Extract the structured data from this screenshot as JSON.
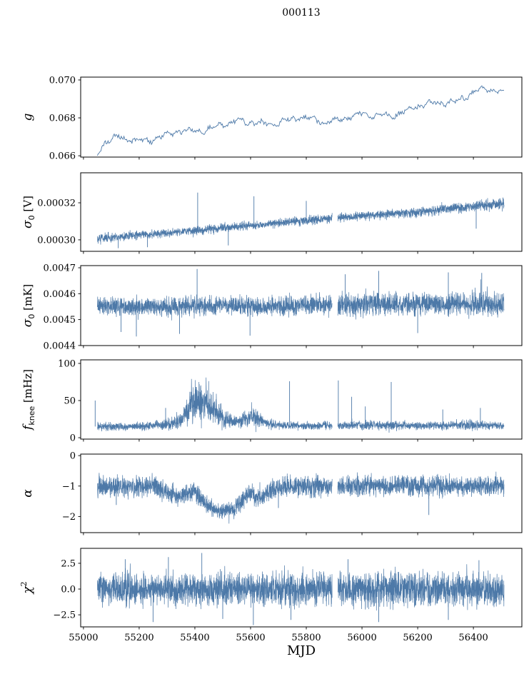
{
  "figure": {
    "title": "000113",
    "xlabel": "MJD",
    "line_color": "#4d79a8",
    "axis_color": "#000000",
    "background": "#ffffff"
  },
  "chart_data": [
    {
      "type": "line",
      "style": "smooth-line",
      "ylabel": {
        "main": "g",
        "sub": "",
        "sup": "",
        "unit": "",
        "italic": true
      },
      "ylim": [
        0.06593,
        0.07015
      ],
      "yticks": [
        {
          "v": 0.066,
          "t": "0.066"
        },
        {
          "v": 0.068,
          "t": "0.068"
        },
        {
          "v": 0.07,
          "t": "0.070"
        }
      ],
      "x_range_data": [
        55050,
        56510
      ],
      "envelope": {
        "x": [
          55050,
          55075,
          55110,
          55180,
          55260,
          55330,
          55400,
          55480,
          55560,
          55640,
          55720,
          55800,
          55880,
          55960,
          56040,
          56120,
          56200,
          56280,
          56360,
          56430,
          56510
        ],
        "center": [
          0.0661,
          0.0666,
          0.06685,
          0.0669,
          0.06695,
          0.0671,
          0.0674,
          0.0676,
          0.0677,
          0.0678,
          0.0678,
          0.0679,
          0.0679,
          0.068,
          0.0681,
          0.0683,
          0.0685,
          0.0688,
          0.0691,
          0.0694,
          0.0694
        ],
        "spread": [
          0.00022,
          0.00025,
          0.00025,
          0.00025,
          0.00025,
          0.00025,
          0.00025,
          0.00025,
          0.00025,
          0.00025,
          0.00025,
          0.00025,
          0.00025,
          0.00025,
          0.00025,
          0.00025,
          0.00025,
          0.00025,
          0.00025,
          0.00022,
          0.0002
        ]
      },
      "spikes": [],
      "gaps": []
    },
    {
      "type": "line",
      "style": "noise-band",
      "ylabel": {
        "main": "σ",
        "sub": "0",
        "sup": "",
        "unit": " [V]",
        "italic": true
      },
      "ylim": [
        0.0002938,
        0.0003362
      ],
      "yticks": [
        {
          "v": 0.0003,
          "t": "0.00030"
        },
        {
          "v": 0.00032,
          "t": "0.00032"
        }
      ],
      "x_range_data": [
        55050,
        56510
      ],
      "envelope": {
        "x": [
          55050,
          55200,
          55400,
          55600,
          55800,
          56000,
          56200,
          56400,
          56510
        ],
        "center": [
          0.000301,
          0.0003025,
          0.000305,
          0.000308,
          0.0003105,
          0.000313,
          0.000315,
          0.000318,
          0.0003195
        ],
        "spread": [
          2.2e-06,
          2.2e-06,
          2.3e-06,
          2.3e-06,
          2.4e-06,
          2.4e-06,
          2.5e-06,
          2.8e-06,
          3e-06
        ]
      },
      "spikes": [
        [
          55410,
          0.0003255
        ],
        [
          55612,
          0.0003235
        ],
        [
          55800,
          0.000321
        ],
        [
          55125,
          0.0002955
        ],
        [
          55230,
          0.000296
        ],
        [
          55520,
          0.000297
        ],
        [
          56410,
          0.000306
        ]
      ],
      "gaps": [
        [
          55893,
          55913
        ]
      ]
    },
    {
      "type": "line",
      "style": "noise-band",
      "ylabel": {
        "main": "σ",
        "sub": "0",
        "sup": "",
        "unit": " [mK]",
        "italic": true
      },
      "ylim": [
        0.0043997,
        0.0047083
      ],
      "yticks": [
        {
          "v": 0.0044,
          "t": "0.0044"
        },
        {
          "v": 0.0045,
          "t": "0.0045"
        },
        {
          "v": 0.0046,
          "t": "0.0046"
        },
        {
          "v": 0.0047,
          "t": "0.0047"
        }
      ],
      "x_range_data": [
        55050,
        56510
      ],
      "envelope": {
        "x": [
          55050,
          55200,
          55400,
          55600,
          55800,
          56000,
          56200,
          56400,
          56510
        ],
        "center": [
          0.004555,
          0.004549,
          0.004553,
          0.004551,
          0.004556,
          0.004558,
          0.00456,
          0.004561,
          0.004559
        ],
        "spread": [
          3.4e-05,
          3.2e-05,
          3.6e-05,
          3.4e-05,
          3.6e-05,
          4.2e-05,
          4e-05,
          4.4e-05,
          4.2e-05
        ]
      },
      "spikes": [
        [
          55408,
          0.004695
        ],
        [
          56060,
          0.004688
        ],
        [
          56310,
          0.004682
        ],
        [
          56430,
          0.00468
        ],
        [
          55940,
          0.004675
        ],
        [
          55190,
          0.004435
        ],
        [
          55345,
          0.004445
        ],
        [
          55598,
          0.004438
        ],
        [
          55135,
          0.004452
        ],
        [
          56200,
          0.004448
        ]
      ],
      "gaps": [
        [
          55893,
          55913
        ]
      ]
    },
    {
      "type": "line",
      "style": "noise-band",
      "ylabel": {
        "main": "f",
        "sub": "knee",
        "sup": "",
        "unit": " [mHz]",
        "italic": true
      },
      "ylim": [
        -1.9,
        104.8
      ],
      "yticks": [
        {
          "v": 0,
          "t": "0"
        },
        {
          "v": 50,
          "t": "50"
        },
        {
          "v": 100,
          "t": "100"
        }
      ],
      "x_range_data": [
        55050,
        56510
      ],
      "envelope": {
        "x": [
          55050,
          55150,
          55250,
          55310,
          55350,
          55380,
          55410,
          55440,
          55470,
          55500,
          55540,
          55570,
          55600,
          55630,
          55660,
          55700,
          55800,
          55900,
          56000,
          56100,
          56200,
          56300,
          56400,
          56510
        ],
        "center": [
          15,
          15,
          16,
          18,
          24,
          38,
          48,
          46,
          38,
          28,
          20,
          24,
          30,
          26,
          19,
          16,
          16,
          16,
          17,
          17,
          16,
          17,
          17,
          16
        ],
        "spread": [
          5,
          5,
          6,
          8,
          12,
          22,
          28,
          26,
          20,
          14,
          8,
          10,
          14,
          11,
          7,
          5,
          5,
          5,
          6,
          6,
          5,
          6,
          6,
          5
        ]
      },
      "spikes": [
        [
          55042,
          50
        ],
        [
          55295,
          40
        ],
        [
          55740,
          76
        ],
        [
          55915,
          77
        ],
        [
          55963,
          55
        ],
        [
          56012,
          42
        ],
        [
          56105,
          75
        ],
        [
          56290,
          38
        ],
        [
          56425,
          40
        ]
      ],
      "gaps": [
        [
          55893,
          55913
        ]
      ]
    },
    {
      "type": "line",
      "style": "noise-band",
      "ylabel": {
        "main": "α",
        "sub": "",
        "sup": "",
        "unit": "",
        "italic": true
      },
      "ylim": [
        -2.53,
        0.05
      ],
      "yticks": [
        {
          "v": 0,
          "t": "0"
        },
        {
          "v": -1,
          "t": "−1"
        },
        {
          "v": -2,
          "t": "−2"
        }
      ],
      "x_range_data": [
        55050,
        56510
      ],
      "envelope": {
        "x": [
          55050,
          55260,
          55300,
          55340,
          55370,
          55400,
          55430,
          55460,
          55500,
          55540,
          55570,
          55600,
          55620,
          55650,
          55680,
          55720,
          56510
        ],
        "center": [
          -1.0,
          -1.0,
          -1.2,
          -1.35,
          -1.2,
          -1.15,
          -1.5,
          -1.75,
          -1.8,
          -1.75,
          -1.45,
          -1.2,
          -1.4,
          -1.3,
          -1.1,
          -1.0,
          -1.0
        ],
        "spread": [
          0.33,
          0.33,
          0.3,
          0.3,
          0.3,
          0.3,
          0.28,
          0.25,
          0.25,
          0.25,
          0.3,
          0.3,
          0.3,
          0.3,
          0.3,
          0.33,
          0.33
        ]
      },
      "spikes": [
        [
          55118,
          -1.62
        ],
        [
          55700,
          -1.72
        ],
        [
          56240,
          -1.95
        ]
      ],
      "gaps": [
        [
          55893,
          55913
        ]
      ]
    },
    {
      "type": "line",
      "style": "noise-band",
      "ylabel": {
        "main": "χ",
        "sub": "",
        "sup": "2",
        "unit": "",
        "italic": true
      },
      "ylim": [
        -3.67,
        3.95
      ],
      "yticks": [
        {
          "v": 2.5,
          "t": "2.5"
        },
        {
          "v": 0.0,
          "t": "0.0"
        },
        {
          "v": -2.5,
          "t": "−2.5"
        }
      ],
      "x_range_data": [
        55050,
        56510
      ],
      "envelope": {
        "x": [
          55050,
          56510
        ],
        "center": [
          0,
          0
        ],
        "spread": [
          1.6,
          1.6
        ]
      },
      "spikes": [
        [
          55150,
          2.9
        ],
        [
          55250,
          -3.2
        ],
        [
          55305,
          3.1
        ],
        [
          55425,
          3.5
        ],
        [
          55500,
          -2.9
        ],
        [
          55610,
          -3.5
        ],
        [
          55745,
          -3.0
        ],
        [
          55950,
          2.9
        ],
        [
          56060,
          -3.2
        ],
        [
          56310,
          -3.0
        ],
        [
          56420,
          2.8
        ]
      ],
      "gaps": [
        [
          55893,
          55913
        ]
      ]
    }
  ],
  "x_axis": {
    "xlim": [
      54990,
      56574
    ],
    "xticks": [
      {
        "v": 55000,
        "t": "55000"
      },
      {
        "v": 55200,
        "t": "55200"
      },
      {
        "v": 55400,
        "t": "55400"
      },
      {
        "v": 55600,
        "t": "55600"
      },
      {
        "v": 55800,
        "t": "55800"
      },
      {
        "v": 56000,
        "t": "56000"
      },
      {
        "v": 56200,
        "t": "56200"
      },
      {
        "v": 56400,
        "t": "56400"
      }
    ]
  }
}
